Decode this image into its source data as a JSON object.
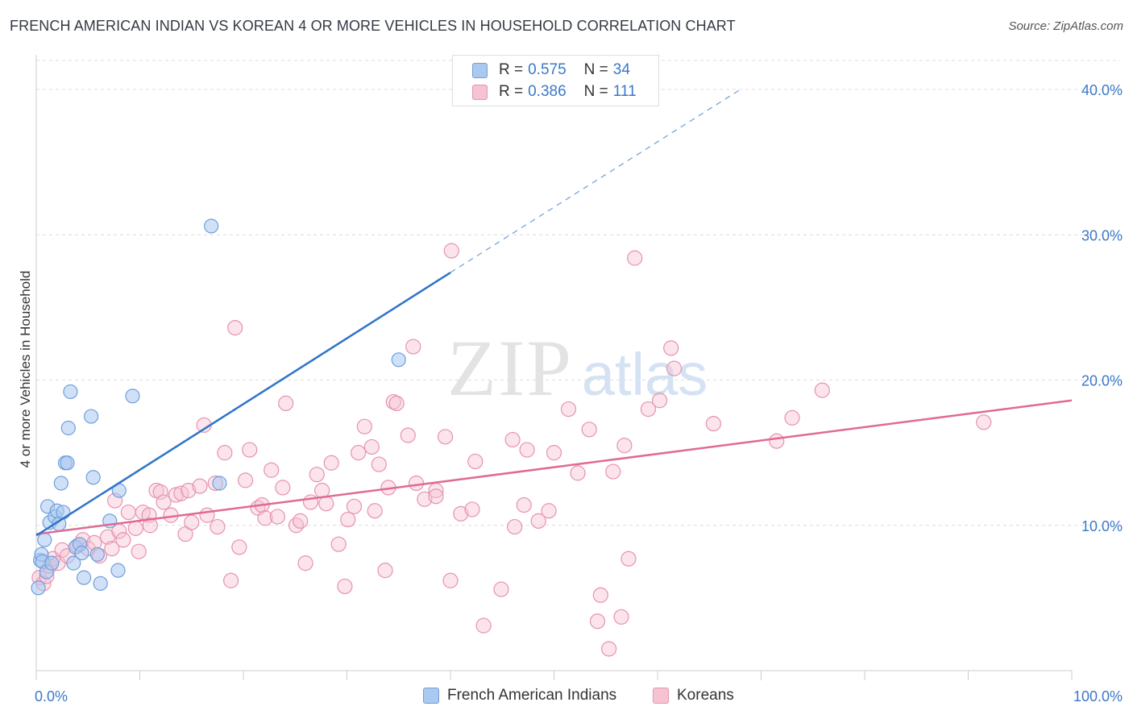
{
  "title": "FRENCH AMERICAN INDIAN VS KOREAN 4 OR MORE VEHICLES IN HOUSEHOLD CORRELATION CHART",
  "source": "Source: ZipAtlas.com",
  "watermark": {
    "zip": "ZIP",
    "atlas": "atlas"
  },
  "legend": {
    "r_label": "R =",
    "n_label": "N =",
    "series1": {
      "r": "0.575",
      "n": "34"
    },
    "series2": {
      "r": "0.386",
      "n": "111"
    }
  },
  "bottom_legend": {
    "series1": "French American Indians",
    "series2": "Koreans"
  },
  "chart_data": {
    "type": "scatter",
    "xlabel": "",
    "ylabel": "4 or more Vehicles in Household",
    "xlim": [
      0,
      100
    ],
    "ylim": [
      0,
      42
    ],
    "x_tick_labels": [
      "0.0%",
      "100.0%"
    ],
    "y_ticks": [
      10,
      20,
      30,
      40
    ],
    "y_tick_labels": [
      "10.0%",
      "20.0%",
      "30.0%",
      "40.0%"
    ],
    "grid": true,
    "colors": {
      "series1_fill": "#aac8f0",
      "series1_stroke": "#6f9fdc",
      "series1_line": "#2e74c9",
      "series2_fill": "#f6c3d3",
      "series2_stroke": "#e693ae",
      "series2_line": "#e06a93",
      "tick_label": "#3b78c9"
    },
    "series": [
      {
        "name": "French American Indians",
        "r": 0.575,
        "n": 34,
        "trend": {
          "x0": 0,
          "y0": 9.3,
          "x1": 40,
          "y1": 27.4,
          "dash_to_x": 68,
          "dash_to_y": 40.0
        },
        "points": [
          [
            0.2,
            5.7
          ],
          [
            0.4,
            7.6
          ],
          [
            0.5,
            8.0
          ],
          [
            0.6,
            7.5
          ],
          [
            0.8,
            9.0
          ],
          [
            1.0,
            6.8
          ],
          [
            1.1,
            11.3
          ],
          [
            1.3,
            10.2
          ],
          [
            1.5,
            7.4
          ],
          [
            1.8,
            10.6
          ],
          [
            2.0,
            11.0
          ],
          [
            2.2,
            10.1
          ],
          [
            2.4,
            12.9
          ],
          [
            2.6,
            10.9
          ],
          [
            2.8,
            14.3
          ],
          [
            3.0,
            14.3
          ],
          [
            3.1,
            16.7
          ],
          [
            3.3,
            19.2
          ],
          [
            3.6,
            7.4
          ],
          [
            3.8,
            8.5
          ],
          [
            4.2,
            8.7
          ],
          [
            4.4,
            8.1
          ],
          [
            4.6,
            6.4
          ],
          [
            5.3,
            17.5
          ],
          [
            5.5,
            13.3
          ],
          [
            5.9,
            8.0
          ],
          [
            6.2,
            6.0
          ],
          [
            7.1,
            10.3
          ],
          [
            7.9,
            6.9
          ],
          [
            8.0,
            12.4
          ],
          [
            9.3,
            18.9
          ],
          [
            16.9,
            30.6
          ],
          [
            17.7,
            12.9
          ],
          [
            35.0,
            21.4
          ]
        ]
      },
      {
        "name": "Koreans",
        "r": 0.386,
        "n": 111,
        "trend": {
          "x0": 0,
          "y0": 9.4,
          "x1": 100,
          "y1": 18.6
        },
        "points": [
          [
            0.3,
            6.4
          ],
          [
            0.7,
            6.0
          ],
          [
            1.0,
            6.5
          ],
          [
            1.3,
            7.2
          ],
          [
            1.6,
            7.7
          ],
          [
            2.1,
            7.4
          ],
          [
            2.5,
            8.3
          ],
          [
            3.0,
            7.9
          ],
          [
            4.0,
            8.6
          ],
          [
            4.5,
            9.0
          ],
          [
            5.0,
            8.4
          ],
          [
            5.6,
            8.8
          ],
          [
            6.1,
            7.9
          ],
          [
            6.9,
            9.2
          ],
          [
            7.3,
            8.4
          ],
          [
            7.6,
            11.7
          ],
          [
            8.0,
            9.6
          ],
          [
            8.4,
            9.0
          ],
          [
            8.9,
            10.9
          ],
          [
            9.6,
            9.8
          ],
          [
            9.9,
            8.2
          ],
          [
            10.3,
            10.9
          ],
          [
            10.9,
            10.7
          ],
          [
            11.0,
            10.0
          ],
          [
            11.6,
            12.4
          ],
          [
            12.0,
            12.3
          ],
          [
            12.3,
            11.6
          ],
          [
            13.0,
            10.7
          ],
          [
            13.5,
            12.1
          ],
          [
            14.0,
            12.2
          ],
          [
            14.4,
            9.4
          ],
          [
            14.7,
            12.4
          ],
          [
            15.0,
            10.2
          ],
          [
            15.8,
            12.7
          ],
          [
            16.2,
            16.9
          ],
          [
            16.5,
            10.7
          ],
          [
            17.3,
            12.9
          ],
          [
            17.5,
            9.9
          ],
          [
            18.2,
            15.0
          ],
          [
            18.8,
            6.2
          ],
          [
            19.2,
            23.6
          ],
          [
            19.6,
            8.5
          ],
          [
            20.2,
            13.1
          ],
          [
            20.6,
            15.2
          ],
          [
            21.4,
            11.2
          ],
          [
            21.8,
            11.4
          ],
          [
            22.1,
            10.5
          ],
          [
            22.7,
            13.8
          ],
          [
            23.3,
            10.6
          ],
          [
            23.8,
            12.6
          ],
          [
            24.1,
            18.4
          ],
          [
            25.1,
            10.0
          ],
          [
            25.5,
            10.3
          ],
          [
            26.0,
            7.4
          ],
          [
            26.5,
            11.6
          ],
          [
            27.1,
            13.5
          ],
          [
            27.6,
            12.4
          ],
          [
            28.0,
            11.5
          ],
          [
            28.5,
            14.3
          ],
          [
            29.2,
            8.7
          ],
          [
            29.8,
            5.8
          ],
          [
            30.1,
            10.4
          ],
          [
            30.7,
            11.3
          ],
          [
            31.1,
            15.0
          ],
          [
            31.7,
            16.8
          ],
          [
            32.4,
            15.4
          ],
          [
            32.7,
            11.0
          ],
          [
            33.1,
            14.2
          ],
          [
            33.7,
            6.9
          ],
          [
            34.0,
            12.6
          ],
          [
            34.5,
            18.5
          ],
          [
            34.8,
            18.4
          ],
          [
            35.9,
            16.2
          ],
          [
            36.4,
            22.3
          ],
          [
            36.7,
            12.9
          ],
          [
            37.5,
            11.8
          ],
          [
            38.6,
            12.4
          ],
          [
            38.6,
            12.0
          ],
          [
            39.5,
            16.1
          ],
          [
            40.0,
            6.2
          ],
          [
            40.1,
            28.9
          ],
          [
            41.0,
            10.8
          ],
          [
            42.1,
            11.1
          ],
          [
            42.4,
            14.4
          ],
          [
            43.2,
            3.1
          ],
          [
            44.9,
            5.6
          ],
          [
            46.0,
            15.9
          ],
          [
            46.2,
            9.9
          ],
          [
            47.1,
            11.4
          ],
          [
            47.4,
            15.2
          ],
          [
            48.5,
            10.3
          ],
          [
            49.5,
            11.0
          ],
          [
            50.0,
            15.0
          ],
          [
            51.4,
            18.0
          ],
          [
            52.3,
            13.6
          ],
          [
            53.4,
            16.6
          ],
          [
            54.2,
            3.4
          ],
          [
            54.5,
            5.2
          ],
          [
            55.3,
            1.5
          ],
          [
            55.7,
            13.7
          ],
          [
            56.5,
            3.7
          ],
          [
            56.8,
            15.5
          ],
          [
            57.2,
            7.7
          ],
          [
            57.8,
            28.4
          ],
          [
            59.1,
            18.0
          ],
          [
            60.2,
            18.6
          ],
          [
            61.3,
            22.2
          ],
          [
            61.6,
            20.8
          ],
          [
            65.4,
            17.0
          ],
          [
            71.5,
            15.8
          ],
          [
            73.0,
            17.4
          ],
          [
            75.9,
            19.3
          ],
          [
            91.5,
            17.1
          ]
        ]
      }
    ]
  }
}
